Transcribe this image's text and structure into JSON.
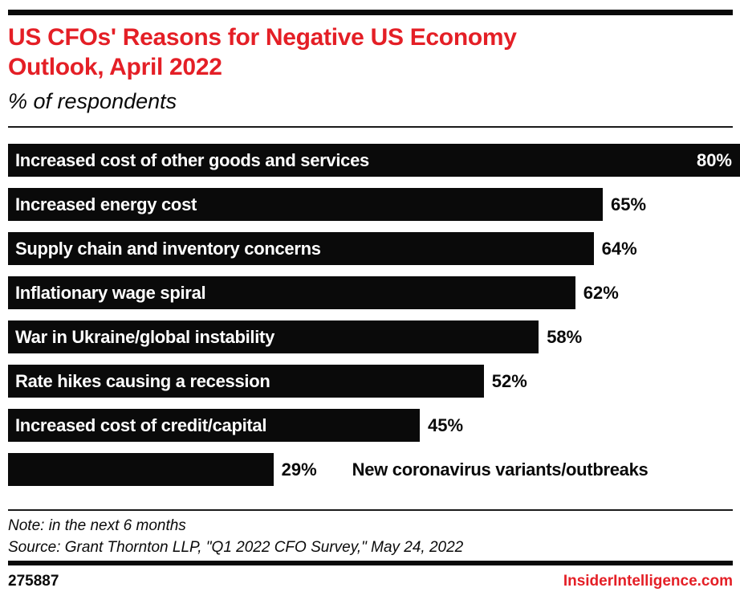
{
  "colors": {
    "accent_red": "#e41f26",
    "bar_black": "#0a0a0a",
    "background": "#ffffff"
  },
  "header": {
    "title": "US CFOs' Reasons for Negative US Economy Outlook, April 2022",
    "subtitle": "% of respondents"
  },
  "chart_data": {
    "type": "bar",
    "orientation": "horizontal",
    "title": "US CFOs' Reasons for Negative US Economy Outlook, April 2022",
    "subtitle": "% of respondents",
    "unit": "%",
    "xlim": [
      0,
      80
    ],
    "grid": false,
    "legend": false,
    "categories": [
      "Increased cost of other goods and services",
      "Increased energy cost",
      "Supply chain and inventory concerns",
      "Inflationary wage spiral",
      "War in Ukraine/global instability",
      "Rate hikes causing a recession",
      "Increased cost of credit/capital",
      "New coronavirus variants/outbreaks"
    ],
    "values": [
      80,
      65,
      64,
      62,
      58,
      52,
      45,
      29
    ],
    "bars": [
      {
        "label": "Increased cost of other goods and services",
        "value": 80,
        "value_label": "80%",
        "label_position": "inside",
        "value_position": "inside"
      },
      {
        "label": "Increased energy cost",
        "value": 65,
        "value_label": "65%",
        "label_position": "inside",
        "value_position": "outside"
      },
      {
        "label": "Supply chain and inventory concerns",
        "value": 64,
        "value_label": "64%",
        "label_position": "inside",
        "value_position": "outside"
      },
      {
        "label": "Inflationary wage spiral",
        "value": 62,
        "value_label": "62%",
        "label_position": "inside",
        "value_position": "outside"
      },
      {
        "label": "War in Ukraine/global instability",
        "value": 58,
        "value_label": "58%",
        "label_position": "inside",
        "value_position": "outside"
      },
      {
        "label": "Rate hikes causing a recession",
        "value": 52,
        "value_label": "52%",
        "label_position": "inside",
        "value_position": "outside"
      },
      {
        "label": "Increased cost of credit/capital",
        "value": 45,
        "value_label": "45%",
        "label_position": "inside",
        "value_position": "outside"
      },
      {
        "label": "New coronavirus variants/outbreaks",
        "value": 29,
        "value_label": "29%",
        "label_position": "outside",
        "value_position": "outside"
      }
    ]
  },
  "footer": {
    "note": "Note: in the next 6 months",
    "source": "Source: Grant Thornton LLP, \"Q1 2022 CFO Survey,\" May 24, 2022",
    "chart_id": "275887",
    "site": "InsiderIntelligence.com"
  }
}
